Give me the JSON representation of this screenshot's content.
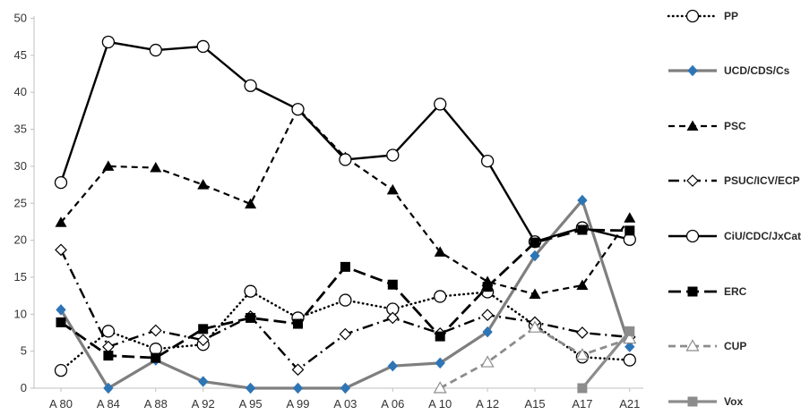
{
  "chart_data": {
    "type": "line",
    "categories": [
      "A 80",
      "A 84",
      "A 88",
      "A 92",
      "A 95",
      "A 99",
      "A 03",
      "A 06",
      "A 10",
      "A 12",
      "A15",
      "A17",
      "A21"
    ],
    "ylim": [
      0,
      50
    ],
    "yticks": [
      0,
      5,
      10,
      15,
      20,
      25,
      30,
      35,
      40,
      45,
      50
    ],
    "grid": false,
    "legend_position": "right",
    "series": [
      {
        "name": "PP",
        "color": "#000000",
        "line": "dotted",
        "marker": "open-circle",
        "values": [
          2.4,
          7.7,
          5.3,
          5.9,
          13.1,
          9.5,
          11.9,
          10.7,
          12.4,
          13.0,
          8.5,
          4.2,
          3.8
        ]
      },
      {
        "name": "UCD/CDS/Cs",
        "color": "#7f7f7f",
        "line": "solid-thick",
        "marker": "filled-diamond-blue",
        "values": [
          10.6,
          0.0,
          3.8,
          0.9,
          0.0,
          0.0,
          0.0,
          3.0,
          3.4,
          7.6,
          17.9,
          25.4,
          5.6
        ]
      },
      {
        "name": "PSC",
        "color": "#000000",
        "line": "dashed",
        "marker": "filled-triangle",
        "values": [
          22.4,
          30.0,
          29.8,
          27.5,
          24.9,
          37.8,
          31.2,
          26.8,
          18.4,
          14.4,
          12.7,
          13.9,
          23.0
        ]
      },
      {
        "name": "PSUC/ICV/ECP",
        "color": "#000000",
        "line": "dash-dot",
        "marker": "open-diamond",
        "values": [
          18.7,
          5.6,
          7.8,
          6.5,
          9.7,
          2.5,
          7.3,
          9.5,
          7.4,
          9.9,
          8.9,
          7.5,
          6.9
        ]
      },
      {
        "name": "CiU/CDC/JxCat",
        "color": "#000000",
        "line": "solid",
        "marker": "open-circle",
        "values": [
          27.8,
          46.8,
          45.7,
          46.2,
          40.9,
          37.7,
          30.9,
          31.5,
          38.4,
          30.7,
          19.8,
          21.7,
          20.1
        ]
      },
      {
        "name": "ERC",
        "color": "#000000",
        "line": "long-dash",
        "marker": "filled-square",
        "values": [
          8.9,
          4.4,
          4.1,
          8.0,
          9.5,
          8.7,
          16.4,
          14.0,
          7.0,
          13.7,
          19.7,
          21.4,
          21.3
        ]
      },
      {
        "name": "CUP",
        "color": "#8c8c8c",
        "line": "dashed-gray",
        "marker": "open-triangle",
        "values": [
          null,
          null,
          null,
          null,
          null,
          null,
          null,
          null,
          0.0,
          3.5,
          8.2,
          4.5,
          6.7
        ]
      },
      {
        "name": "Vox",
        "color": "#8c8c8c",
        "line": "solid-thick",
        "marker": "filled-square-gray",
        "values": [
          null,
          null,
          null,
          null,
          null,
          null,
          null,
          null,
          null,
          null,
          null,
          0.0,
          7.7
        ]
      }
    ]
  }
}
